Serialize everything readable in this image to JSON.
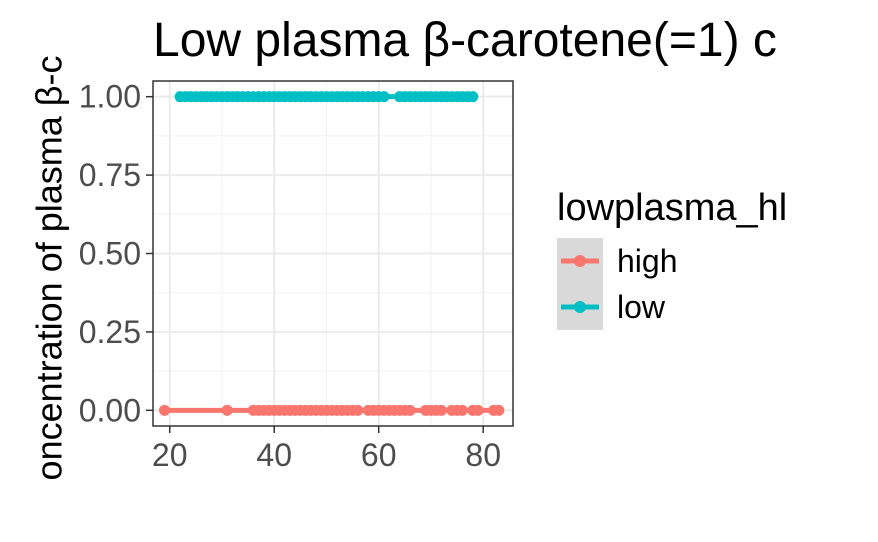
{
  "chart_data": {
    "type": "scatter",
    "title": "Low plasma β-carotene(=1) c",
    "xlabel": "",
    "ylabel": "oncentration of plasma β-c",
    "xlim": [
      16.8,
      85.7
    ],
    "ylim": [
      -0.05,
      1.05
    ],
    "x_ticks": [
      20,
      40,
      60,
      80
    ],
    "y_ticks": [
      0.0,
      0.25,
      0.5,
      0.75,
      1.0
    ],
    "x_tick_labels": [
      "20",
      "40",
      "60",
      "80"
    ],
    "y_tick_labels": [
      "0.00",
      "0.25",
      "0.50",
      "0.75",
      "1.00"
    ],
    "grid": true,
    "legend": {
      "title": "lowplasma_hl",
      "position": "right",
      "entries": [
        "high",
        "low"
      ]
    },
    "colors": {
      "high": "#F8766D",
      "low": "#00BFC4"
    },
    "series": [
      {
        "name": "high",
        "y": 0,
        "x": [
          19,
          31,
          36,
          37,
          38,
          39,
          40,
          41,
          42,
          43,
          44,
          45,
          46,
          47,
          48,
          49,
          50,
          51,
          52,
          53,
          54,
          55,
          56,
          58,
          59,
          60,
          61,
          62,
          63,
          64,
          65,
          66,
          69,
          70,
          71,
          72,
          74,
          75,
          76,
          78,
          79,
          82,
          83
        ]
      },
      {
        "name": "low",
        "y": 1,
        "x": [
          22,
          23,
          24,
          25,
          26,
          27,
          28,
          29,
          30,
          31,
          32,
          33,
          34,
          35,
          36,
          37,
          38,
          39,
          40,
          41,
          42,
          43,
          44,
          45,
          46,
          47,
          48,
          49,
          50,
          51,
          52,
          53,
          54,
          55,
          56,
          57,
          58,
          59,
          60,
          61,
          64,
          65,
          66,
          67,
          68,
          69,
          70,
          71,
          72,
          73,
          74,
          75,
          76,
          77,
          78
        ]
      }
    ]
  }
}
